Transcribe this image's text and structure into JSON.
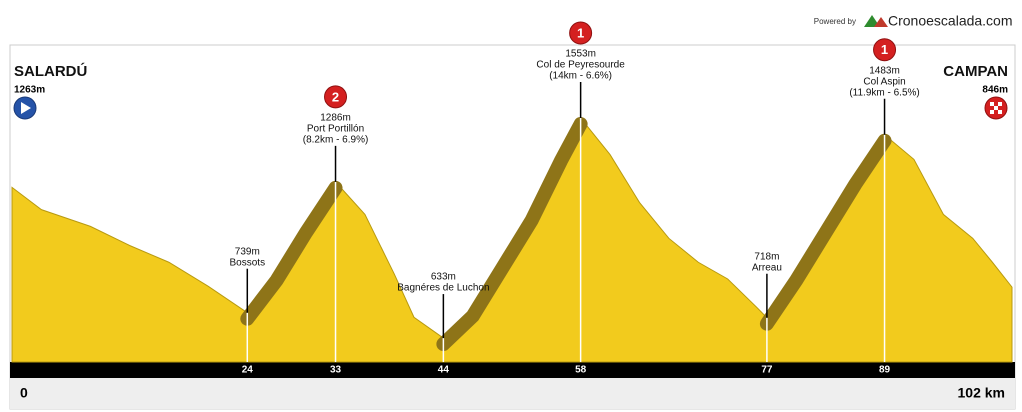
{
  "chart_data": {
    "type": "area",
    "brand": {
      "prefix": "Powered by",
      "name": "Cronoescalada.com"
    },
    "start": {
      "name": "SALARDÚ",
      "elevation": {
        "value": 1263,
        "label": "1263m"
      }
    },
    "finish": {
      "name": "CAMPAN",
      "elevation": {
        "value": 846,
        "label": "846m"
      }
    },
    "x": [
      0,
      3,
      8,
      12,
      16,
      20,
      24,
      27,
      30,
      33,
      36,
      39,
      41,
      44,
      47,
      50,
      53,
      56,
      58,
      61,
      64,
      67,
      70,
      73,
      76,
      77,
      80,
      83,
      86,
      89,
      92,
      95,
      98,
      100,
      102
    ],
    "values": [
      1263,
      1170,
      1100,
      1020,
      950,
      850,
      739,
      900,
      1100,
      1286,
      1150,
      900,
      720,
      633,
      750,
      950,
      1150,
      1400,
      1553,
      1400,
      1200,
      1050,
      950,
      880,
      760,
      718,
      900,
      1100,
      1300,
      1483,
      1380,
      1150,
      1050,
      950,
      846
    ],
    "color": "#f2cb1d",
    "climb_color": "#8e7418",
    "xlim": [
      0,
      102
    ],
    "ylim": [
      533,
      1553
    ],
    "xticks": [
      0,
      24,
      33,
      44,
      58,
      77,
      89,
      {
        "value": 102,
        "label": "102 km"
      }
    ],
    "points": [
      {
        "km": 24,
        "elevation": {
          "value": 739,
          "label": "739m"
        },
        "name": "Bossots"
      },
      {
        "km": 33,
        "elevation": {
          "value": 1286,
          "label": "1286m"
        },
        "name": "Port Portillón",
        "detail": "(8.2km - 6.9%)",
        "category": "2",
        "climb_from": 24
      },
      {
        "km": 44,
        "elevation": {
          "value": 633,
          "label": "633m"
        },
        "name": "Bagnéres de Luchon"
      },
      {
        "km": 58,
        "elevation": {
          "value": 1553,
          "label": "1553m"
        },
        "name": "Col de Peyresourde",
        "detail": "(14km - 6.6%)",
        "category": "1",
        "climb_from": 44
      },
      {
        "km": 77,
        "elevation": {
          "value": 718,
          "label": "718m"
        },
        "name": "Arreau"
      },
      {
        "km": 89,
        "elevation": {
          "value": 1483,
          "label": "1483m"
        },
        "name": "Col Aspin",
        "detail": "(11.9km - 6.5%)",
        "category": "1",
        "climb_from": 77
      }
    ]
  }
}
